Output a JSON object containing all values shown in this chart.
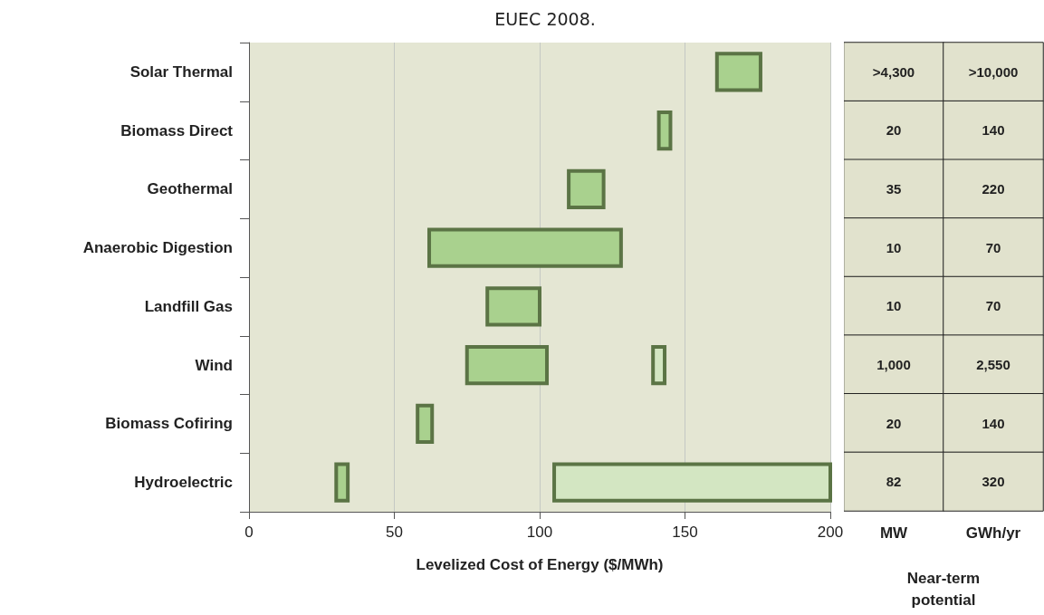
{
  "chart_data": [
    {
      "type": "bar",
      "title": "EUEC 2008.",
      "orientation": "horizontal",
      "xlabel": "Levelized Cost of Energy ($/MWh)",
      "categories": [
        "Solar Thermal",
        "Biomass Direct",
        "Geothermal",
        "Anaerobic Digestion",
        "Landfill Gas",
        "Wind",
        "Biomass Cofiring",
        "Hydroelectric"
      ],
      "series": [
        {
          "color": "#a9d18e",
          "base": [
            161,
            141,
            110,
            62,
            82,
            75,
            58,
            30
          ],
          "values": [
            15,
            4,
            12,
            66,
            18,
            27.5,
            5,
            4
          ]
        },
        {
          "color": "#d3e6c2",
          "base": [
            null,
            null,
            null,
            null,
            null,
            139,
            null,
            105
          ],
          "values": [
            null,
            null,
            null,
            null,
            null,
            4,
            null,
            95
          ]
        }
      ],
      "xlim": [
        0,
        200
      ],
      "xticks": [
        0,
        50,
        100,
        150,
        200
      ],
      "grid": "x"
    },
    {
      "type": "other",
      "xlabel": "Near-term potential",
      "categories": [
        "MW",
        "GWh/yr"
      ],
      "cell_labels": [
        [
          ">4,300",
          ">10,000"
        ],
        [
          "20",
          "140"
        ],
        [
          "35",
          "220"
        ],
        [
          "10",
          "70"
        ],
        [
          "10",
          "70"
        ],
        [
          "1,000",
          "2,550"
        ],
        [
          "20",
          "140"
        ],
        [
          "82",
          "320"
        ]
      ]
    }
  ]
}
